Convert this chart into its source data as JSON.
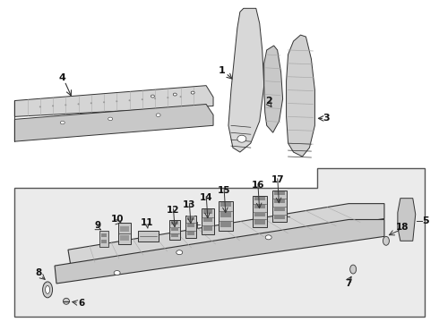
{
  "bg_color": "#ffffff",
  "line_color": "#333333",
  "part_fill": "#d8d8d8",
  "part_fill_dark": "#bbbbbb",
  "label_color": "#111111",
  "label_fontsize": 7.5,
  "box_bg": "#e8e8e8",
  "box_border": "#555555"
}
